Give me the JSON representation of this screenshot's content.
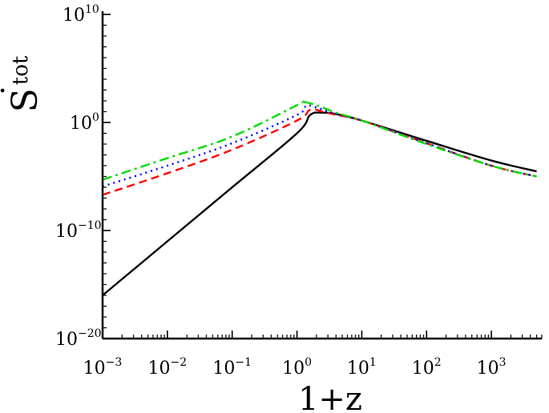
{
  "chart_data": {
    "type": "line",
    "title": "",
    "xlabel": "1+z",
    "ylabel": "Ṡ_tot",
    "ylabel_main": "S",
    "ylabel_dot": "·",
    "ylabel_sub": "tot",
    "x_scale": "log",
    "y_scale": "log",
    "xlim": [
      0.001,
      6000
    ],
    "ylim": [
      1e-20,
      10000000000.0
    ],
    "grid": false,
    "legend": "none",
    "x_ticks": [
      {
        "base": "10",
        "exp": "−3",
        "value": 0.001
      },
      {
        "base": "10",
        "exp": "−2",
        "value": 0.01
      },
      {
        "base": "10",
        "exp": "−1",
        "value": 0.1
      },
      {
        "base": "10",
        "exp": "0",
        "value": 1
      },
      {
        "base": "10",
        "exp": "1",
        "value": 10
      },
      {
        "base": "10",
        "exp": "2",
        "value": 100
      },
      {
        "base": "10",
        "exp": "3",
        "value": 1000
      }
    ],
    "y_ticks": [
      {
        "base": "10",
        "exp": "−20",
        "value": 1e-20
      },
      {
        "base": "10",
        "exp": "−10",
        "value": 1e-10
      },
      {
        "base": "10",
        "exp": "0",
        "value": 1
      },
      {
        "base": "10",
        "exp": "10",
        "value": 10000000000.0
      }
    ],
    "series": [
      {
        "color": "#000000",
        "style": "solid",
        "x": [
          0.001,
          0.01,
          0.1,
          1.0,
          1.6,
          2.5,
          4.0,
          10,
          100,
          1000,
          5000
        ],
        "y": [
          1e-16,
          1e-11,
          1e-06,
          0.1,
          5.0,
          8.0,
          6.0,
          1.5,
          0.02,
          0.0003,
          3e-05
        ]
      },
      {
        "color": "#ff0000",
        "style": "dashed",
        "x": [
          0.001,
          0.01,
          0.1,
          1.0,
          1.6,
          2.5,
          4.0,
          10,
          100,
          1000,
          5000
        ],
        "y": [
          2e-07,
          2e-05,
          0.003,
          1.5,
          15,
          10,
          5.0,
          1.5,
          0.012,
          0.0001,
          1e-05
        ]
      },
      {
        "color": "#0000ff",
        "style": "dotted",
        "x": [
          0.001,
          0.01,
          0.1,
          1.0,
          1.4,
          2.2,
          4.0,
          10,
          100,
          1000,
          5000
        ],
        "y": [
          1.2e-06,
          0.0001,
          0.012,
          5.0,
          35,
          20,
          6.0,
          1.5,
          0.012,
          0.0001,
          1e-05
        ]
      },
      {
        "color": "#00dd00",
        "style": "dashdot",
        "x": [
          0.001,
          0.01,
          0.1,
          1.0,
          1.2,
          2.0,
          4.0,
          10,
          100,
          1000,
          5000
        ],
        "y": [
          5e-06,
          0.0005,
          0.05,
          40,
          80,
          40,
          8.0,
          1.5,
          0.01,
          0.0001,
          1e-05
        ]
      }
    ]
  }
}
